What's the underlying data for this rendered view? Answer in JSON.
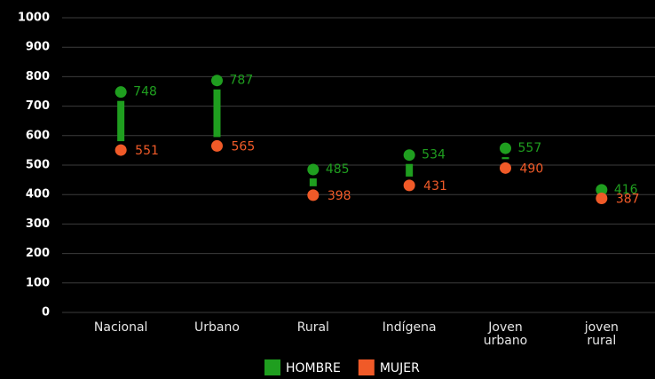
{
  "chart_data": {
    "type": "dumbbell",
    "categories": [
      "Nacional",
      "Urbano",
      "Rural",
      "Indígena",
      "Joven urbano",
      "joven rural"
    ],
    "series": [
      {
        "name": "HOMBRE",
        "color": "#1f9e1f",
        "values": [
          748,
          787,
          485,
          534,
          557,
          416
        ]
      },
      {
        "name": "MUJER",
        "color": "#f05a28",
        "values": [
          551,
          565,
          398,
          431,
          490,
          387
        ]
      }
    ],
    "ylim": [
      0,
      1000
    ],
    "yticks": [
      0,
      100,
      200,
      300,
      400,
      500,
      600,
      700,
      800,
      900,
      1000
    ],
    "grid": true,
    "legend": "bottom"
  }
}
